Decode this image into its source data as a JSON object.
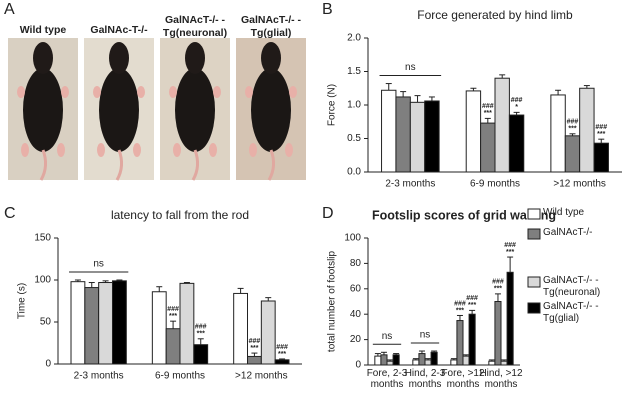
{
  "panel_a": {
    "panel": "A",
    "photos": [
      [
        "Wild type"
      ],
      [
        "GalNAc-T-/-"
      ],
      [
        "GalNAcT-/- -",
        "Tg(neuronal)"
      ],
      [
        "GalNAcT-/- -",
        "Tg(glial)"
      ]
    ]
  },
  "chart_data": [
    {
      "type": "bar",
      "panel": "B",
      "title": "Force generated by hind limb",
      "y_label": "Force (N)",
      "categories": [
        "2-3 months",
        "6-9 months",
        ">12 months"
      ],
      "series": [
        {
          "color": "#ffffff",
          "values": [
            1.22,
            1.21,
            1.15
          ],
          "errors": [
            0.1,
            0.04,
            0.07
          ],
          "significance": [
            null,
            null,
            null
          ]
        },
        {
          "color": "#7f7f7f",
          "values": [
            1.12,
            0.73,
            0.54
          ],
          "errors": [
            0.08,
            0.07,
            0.03
          ],
          "significance": [
            null,
            [
              "###",
              "***"
            ],
            [
              "###",
              "***"
            ]
          ]
        },
        {
          "color": "#d9d9d9",
          "values": [
            1.04,
            1.4,
            1.25
          ],
          "errors": [
            0.1,
            0.05,
            0.04
          ],
          "significance": [
            null,
            null,
            null
          ]
        },
        {
          "color": "#000000",
          "values": [
            1.06,
            0.85,
            0.43
          ],
          "errors": [
            0.06,
            0.04,
            0.06
          ],
          "significance": [
            null,
            [
              "###",
              "*"
            ],
            [
              "###",
              "***"
            ]
          ]
        }
      ],
      "annotations": [
        {
          "text": "ns",
          "category": "2-3 months"
        }
      ],
      "ylim": [
        0,
        2
      ],
      "yticks": [
        {
          "value": 0,
          "label": "0.0"
        },
        0.5,
        {
          "value": 1,
          "label": "1.0"
        },
        1.5,
        {
          "value": 2,
          "label": "2.0"
        }
      ]
    },
    {
      "type": "bar",
      "panel": "C",
      "title": "latency to fall from the rod",
      "y_label": "Time (s)",
      "categories": [
        "2-3 months",
        "6-9 months",
        ">12 months"
      ],
      "series": [
        {
          "color": "#ffffff",
          "values": [
            98,
            86,
            84
          ],
          "errors": [
            2,
            6,
            6
          ],
          "significance": [
            null,
            null,
            null
          ]
        },
        {
          "color": "#7f7f7f",
          "values": [
            91,
            42,
            9
          ],
          "errors": [
            6,
            9,
            4
          ],
          "significance": [
            null,
            [
              "###",
              "***"
            ],
            [
              "###",
              "***"
            ]
          ]
        },
        {
          "color": "#d9d9d9",
          "values": [
            97,
            96,
            75
          ],
          "errors": [
            2,
            1,
            4
          ],
          "significance": [
            null,
            null,
            null
          ]
        },
        {
          "color": "#000000",
          "values": [
            99,
            23,
            5
          ],
          "errors": [
            1,
            7,
            1
          ],
          "significance": [
            null,
            [
              "###",
              "***"
            ],
            [
              "###",
              "***"
            ]
          ]
        }
      ],
      "annotations": [
        {
          "text": "ns",
          "category": "2-3 months"
        }
      ],
      "ylim": [
        0,
        150
      ],
      "yticks": [
        0,
        50,
        100,
        150
      ]
    },
    {
      "type": "bar",
      "panel": "D",
      "title": "Footslip scores of grid walking",
      "y_label": "total number of footslip",
      "categories": [
        "Fore, 2-3 months",
        "Hind, 2-3 months",
        "Fore, >12 months",
        "Hind, >12 months"
      ],
      "series": [
        {
          "name": "Wild type",
          "color": "#ffffff",
          "values": [
            7,
            4,
            4,
            3
          ],
          "errors": [
            2,
            1,
            1,
            1
          ],
          "significance": [
            null,
            null,
            null,
            null
          ]
        },
        {
          "name": "GalNAcT-/-",
          "color": "#7f7f7f",
          "values": [
            8,
            9,
            35,
            50
          ],
          "errors": [
            2,
            2,
            4,
            6
          ],
          "significance": [
            null,
            null,
            [
              "###",
              "***"
            ],
            [
              "###",
              "***"
            ]
          ]
        },
        {
          "name": "GalNAcT-/- - Tg(neuronal)",
          "color": "#d9d9d9",
          "values": [
            3,
            4,
            7,
            3
          ],
          "errors": [
            1,
            1,
            1,
            1
          ],
          "significance": [
            null,
            null,
            null,
            null
          ]
        },
        {
          "name": "GalNAcT-/- - Tg(glial)",
          "color": "#000000",
          "values": [
            8,
            10,
            40,
            73
          ],
          "errors": [
            1,
            1,
            3,
            12
          ],
          "significance": [
            null,
            null,
            [
              "###",
              "***"
            ],
            [
              "###",
              "***"
            ]
          ]
        }
      ],
      "annotations": [
        {
          "text": "ns",
          "category": "Fore, 2-3 months"
        },
        {
          "text": "ns",
          "category": "Hind, 2-3 months"
        }
      ],
      "legend": "right",
      "ylim": [
        0,
        100
      ],
      "yticks": [
        0,
        20,
        40,
        60,
        80,
        100
      ]
    }
  ]
}
